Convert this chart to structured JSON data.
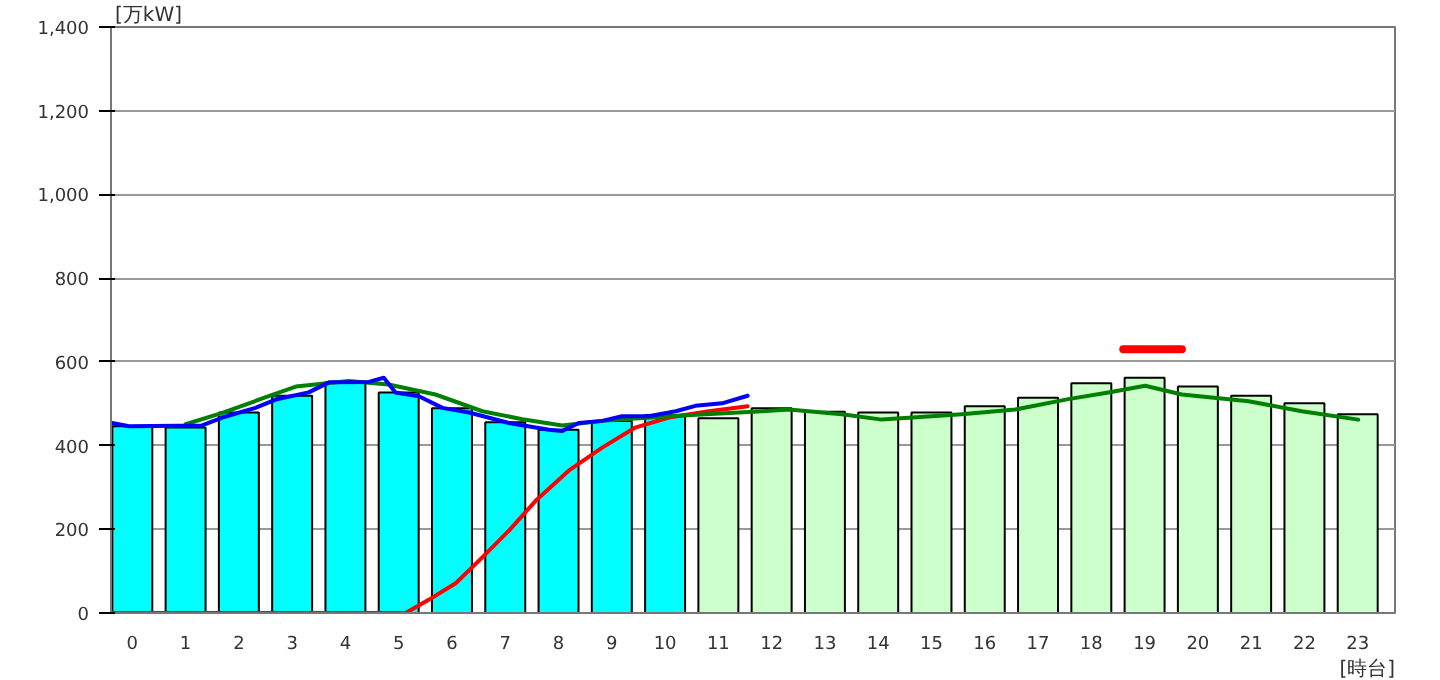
{
  "chart_data": {
    "type": "bar",
    "x": [
      0,
      1,
      2,
      3,
      4,
      5,
      6,
      7,
      8,
      9,
      10,
      11,
      12,
      13,
      14,
      15,
      16,
      17,
      18,
      19,
      20,
      21,
      22,
      23
    ],
    "xlim": [
      -0.4,
      23.7
    ],
    "xticks": [
      0,
      1,
      2,
      3,
      4,
      5,
      6,
      7,
      8,
      9,
      10,
      11,
      12,
      13,
      14,
      15,
      16,
      17,
      18,
      19,
      20,
      21,
      22,
      23
    ],
    "ylabel": "[万kW]",
    "xlabel": "[時台]",
    "ylim": [
      0,
      1400
    ],
    "yticks": [
      0,
      200,
      400,
      600,
      800,
      {
        "value": 1000,
        "label": "1,000"
      },
      {
        "value": 1200,
        "label": "1,200"
      },
      {
        "value": 1400,
        "label": "1,400"
      }
    ],
    "grid": "y",
    "series": [
      {
        "colors": [
          "#00ffff",
          "#00ffff",
          "#00ffff",
          "#00ffff",
          "#00ffff",
          "#00ffff",
          "#00ffff",
          "#00ffff",
          "#00ffff",
          "#00ffff",
          "#00ffff",
          "#ccffcc",
          "#ccffcc",
          "#ccffcc",
          "#ccffcc",
          "#ccffcc",
          "#ccffcc",
          "#ccffcc",
          "#ccffcc",
          "#ccffcc",
          "#ccffcc",
          "#ccffcc",
          "#ccffcc",
          "#ccffcc"
        ],
        "values": [
          446,
          443,
          479,
          519,
          551,
          527,
          489,
          456,
          438,
          459,
          473,
          465,
          489,
          481,
          479,
          479,
          494,
          514,
          549,
          562,
          541,
          519,
          501,
          475
        ]
      },
      {
        "type": "line",
        "color": "#ff0000",
        "x": [
          -0.38,
          5.13,
          5.57,
          6.07,
          6.57,
          7.07,
          7.57,
          8.19,
          8.82,
          9.44,
          10.07,
          10.82,
          11.55
        ],
        "values": [
          0,
          0,
          32,
          71,
          133,
          197,
          268,
          340,
          395,
          443,
          467,
          482,
          494
        ]
      },
      {
        "type": "line",
        "color": "#008000",
        "x": [
          1.0,
          1.69,
          2.56,
          3.07,
          4.06,
          4.81,
          5.69,
          6.57,
          7.32,
          8.07,
          8.82,
          10.07,
          11.82,
          12.32,
          13.32,
          14.07,
          15.57,
          16.57,
          17.57,
          18.32,
          19.01,
          19.7,
          20.95,
          21.95,
          23.01
        ],
        "values": [
          451,
          478,
          518,
          541,
          554,
          546,
          522,
          482,
          463,
          448,
          459,
          470,
          482,
          486,
          475,
          462,
          475,
          486,
          511,
          527,
          543,
          522,
          506,
          482,
          462
        ]
      },
      {
        "type": "line",
        "color": "#0000ff",
        "x": [
          -0.38,
          -0.06,
          1.31,
          1.69,
          2.31,
          2.69,
          3.31,
          3.69,
          4.44,
          4.72,
          4.94,
          5.38,
          5.82,
          6.32,
          7.07,
          7.82,
          8.07,
          8.38,
          8.82,
          9.19,
          9.69,
          10.2,
          10.57,
          11.07,
          11.55
        ],
        "values": [
          454,
          446,
          448,
          467,
          490,
          510,
          527,
          551,
          552,
          562,
          527,
          518,
          490,
          479,
          454,
          438,
          435,
          454,
          459,
          470,
          470,
          482,
          495,
          501,
          519
        ]
      },
      {
        "type": "line",
        "color": "#ff0000",
        "x": [
          18.6,
          19.7
        ],
        "values": [
          630,
          630
        ]
      }
    ]
  }
}
